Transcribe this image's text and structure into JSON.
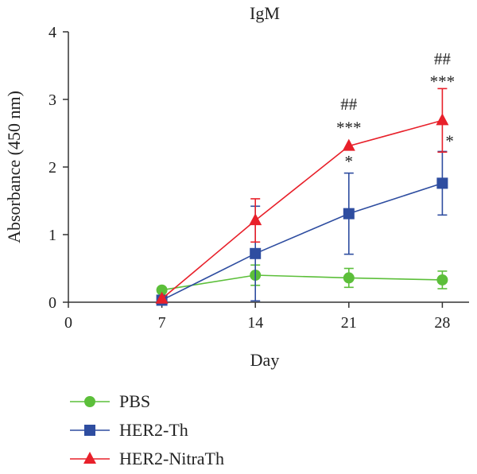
{
  "chart_data": {
    "type": "line",
    "title": "IgM",
    "xlabel": "Day",
    "ylabel": "Absorbance (450 nm)",
    "xlim": [
      0,
      30
    ],
    "ylim": [
      0,
      4
    ],
    "x_ticks": [
      0,
      7,
      14,
      21,
      28
    ],
    "y_ticks": [
      0,
      1,
      2,
      3,
      4
    ],
    "grid": false,
    "legend_position": "bottom-left",
    "series": [
      {
        "name": "PBS",
        "color": "#5cbf3a",
        "marker": "circle",
        "x": [
          7,
          14,
          21,
          28
        ],
        "values": [
          0.18,
          0.4,
          0.36,
          0.33
        ],
        "error": [
          0.0,
          0.15,
          0.14,
          0.13
        ]
      },
      {
        "name": "HER2-Th",
        "color": "#2e4da0",
        "marker": "square",
        "x": [
          7,
          14,
          21,
          28
        ],
        "values": [
          0.03,
          0.72,
          1.31,
          1.76
        ],
        "error": [
          0.0,
          0.7,
          0.6,
          0.47
        ]
      },
      {
        "name": "HER2-NitraTh",
        "color": "#e8202a",
        "marker": "triangle",
        "x": [
          7,
          14,
          21,
          28
        ],
        "values": [
          0.05,
          1.21,
          2.31,
          2.69
        ],
        "error": [
          0.0,
          0.32,
          0.0,
          0.47
        ]
      }
    ],
    "annotations": [
      {
        "text": "##",
        "x": 21,
        "y": 2.85
      },
      {
        "text": "***",
        "x": 21,
        "y": 2.5
      },
      {
        "text": "*",
        "x": 21,
        "y": 2.0
      },
      {
        "text": "##",
        "x": 28,
        "y": 3.52
      },
      {
        "text": "***",
        "x": 28,
        "y": 3.18
      },
      {
        "text": "*",
        "x": 28.55,
        "y": 2.3
      }
    ]
  }
}
